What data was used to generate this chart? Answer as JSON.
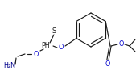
{
  "bg_color": "#ffffff",
  "line_color": "#1a1a1a",
  "atom_colors": {
    "S": "#1a1a1a",
    "P": "#1a1a1a",
    "O": "#0000cc",
    "N": "#00008b",
    "H": "#1a1a1a",
    "C": "#1a1a1a"
  },
  "figsize": [
    1.69,
    0.98
  ],
  "dpi": 100
}
